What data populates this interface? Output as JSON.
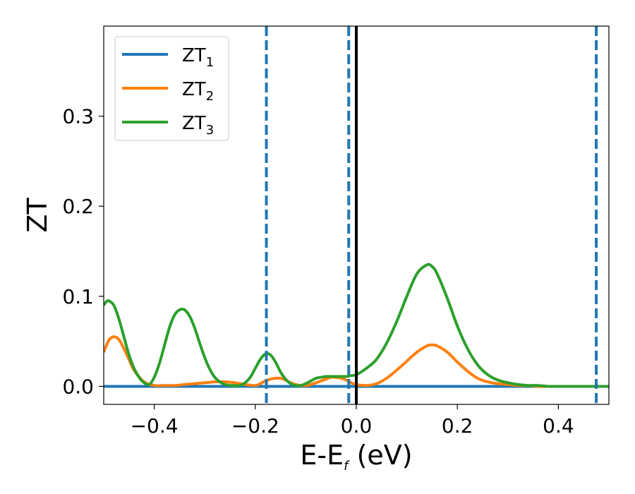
{
  "chart_data": {
    "type": "line",
    "xlabel": "E-E",
    "xlabel_sub": "f",
    "xlabel_unit": " (eV)",
    "ylabel": "ZT",
    "xlim": [
      -0.5,
      0.5
    ],
    "ylim": [
      -0.02,
      0.4
    ],
    "grid": false,
    "legend_position": "top-left",
    "x_ticks": [
      {
        "value": -0.4,
        "label": "−0.4"
      },
      {
        "value": -0.2,
        "label": "−0.2"
      },
      {
        "value": 0.0,
        "label": "0.0"
      },
      {
        "value": 0.2,
        "label": "0.2"
      },
      {
        "value": 0.4,
        "label": "0.4"
      }
    ],
    "y_ticks": [
      {
        "value": 0.0,
        "label": "0.0"
      },
      {
        "value": 0.1,
        "label": "0.1"
      },
      {
        "value": 0.2,
        "label": "0.2"
      },
      {
        "value": 0.3,
        "label": "0.3"
      }
    ],
    "series": [
      {
        "name": "ZT",
        "name_sub": "1",
        "color": "#1f77b4",
        "x": [
          -0.5,
          0.5
        ],
        "y": [
          0.0,
          0.0
        ]
      },
      {
        "name": "ZT",
        "name_sub": "2",
        "color": "#ff7f0e",
        "x": [
          -0.5,
          -0.49,
          -0.48,
          -0.47,
          -0.46,
          -0.45,
          -0.44,
          -0.42,
          -0.4,
          -0.38,
          -0.36,
          -0.34,
          -0.32,
          -0.3,
          -0.28,
          -0.26,
          -0.24,
          -0.22,
          -0.2,
          -0.19,
          -0.18,
          -0.17,
          -0.16,
          -0.15,
          -0.14,
          -0.13,
          -0.12,
          -0.11,
          -0.1,
          -0.09,
          -0.08,
          -0.07,
          -0.06,
          -0.05,
          -0.04,
          -0.03,
          -0.02,
          -0.01,
          0.0,
          0.02,
          0.04,
          0.06,
          0.08,
          0.1,
          0.12,
          0.14,
          0.15,
          0.16,
          0.18,
          0.2,
          0.22,
          0.24,
          0.26,
          0.28,
          0.3,
          0.32,
          0.34,
          0.36,
          0.38,
          0.4,
          0.45,
          0.5
        ],
        "y": [
          0.038,
          0.051,
          0.055,
          0.052,
          0.042,
          0.03,
          0.018,
          0.005,
          0.001,
          0.001,
          0.001,
          0.002,
          0.003,
          0.004,
          0.005,
          0.005,
          0.004,
          0.002,
          0.001,
          0.003,
          0.006,
          0.008,
          0.009,
          0.009,
          0.007,
          0.004,
          0.002,
          0.001,
          0.001,
          0.002,
          0.004,
          0.006,
          0.008,
          0.01,
          0.01,
          0.009,
          0.007,
          0.004,
          0.002,
          0.001,
          0.003,
          0.009,
          0.018,
          0.028,
          0.038,
          0.045,
          0.046,
          0.045,
          0.038,
          0.027,
          0.017,
          0.009,
          0.005,
          0.003,
          0.002,
          0.001,
          0.001,
          0.0,
          0.0,
          0.0,
          0.0,
          0.0
        ]
      },
      {
        "name": "ZT",
        "name_sub": "3",
        "color": "#2ca02c",
        "x": [
          -0.5,
          -0.495,
          -0.49,
          -0.48,
          -0.47,
          -0.46,
          -0.45,
          -0.44,
          -0.43,
          -0.42,
          -0.41,
          -0.4,
          -0.39,
          -0.38,
          -0.37,
          -0.36,
          -0.35,
          -0.34,
          -0.33,
          -0.32,
          -0.31,
          -0.3,
          -0.29,
          -0.28,
          -0.27,
          -0.26,
          -0.25,
          -0.24,
          -0.23,
          -0.22,
          -0.21,
          -0.2,
          -0.19,
          -0.18,
          -0.17,
          -0.16,
          -0.15,
          -0.14,
          -0.13,
          -0.12,
          -0.11,
          -0.1,
          -0.09,
          -0.08,
          -0.07,
          -0.06,
          -0.05,
          -0.04,
          -0.03,
          -0.02,
          -0.01,
          0.0,
          0.02,
          0.04,
          0.06,
          0.08,
          0.1,
          0.12,
          0.14,
          0.15,
          0.16,
          0.18,
          0.2,
          0.22,
          0.24,
          0.26,
          0.28,
          0.3,
          0.32,
          0.34,
          0.36,
          0.38,
          0.4,
          0.45,
          0.5
        ],
        "y": [
          0.09,
          0.094,
          0.095,
          0.09,
          0.075,
          0.055,
          0.035,
          0.02,
          0.01,
          0.004,
          0.002,
          0.01,
          0.025,
          0.045,
          0.065,
          0.079,
          0.085,
          0.085,
          0.078,
          0.065,
          0.048,
          0.032,
          0.019,
          0.01,
          0.005,
          0.002,
          0.001,
          0.001,
          0.001,
          0.004,
          0.01,
          0.02,
          0.03,
          0.036,
          0.035,
          0.027,
          0.016,
          0.008,
          0.003,
          0.001,
          0.001,
          0.003,
          0.006,
          0.009,
          0.01,
          0.011,
          0.011,
          0.011,
          0.011,
          0.011,
          0.012,
          0.013,
          0.02,
          0.03,
          0.048,
          0.072,
          0.1,
          0.125,
          0.135,
          0.133,
          0.125,
          0.098,
          0.067,
          0.042,
          0.024,
          0.013,
          0.007,
          0.004,
          0.002,
          0.001,
          0.001,
          0.0,
          0.0,
          0.0,
          0.0
        ]
      }
    ],
    "vlines": [
      {
        "x": -0.178,
        "color": "#1f77b4",
        "style": "dashed"
      },
      {
        "x": -0.015,
        "color": "#1f77b4",
        "style": "dashed"
      },
      {
        "x": 0.0,
        "color": "#000000",
        "style": "solid"
      },
      {
        "x": 0.475,
        "color": "#1f77b4",
        "style": "dashed"
      }
    ]
  }
}
